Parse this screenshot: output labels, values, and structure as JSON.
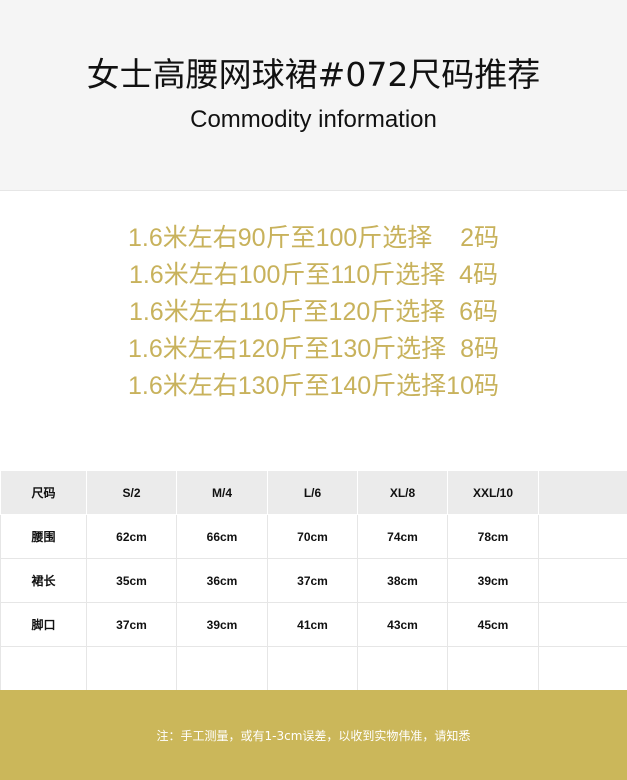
{
  "header": {
    "title": "女士高腰网球裙#072尺码推荐",
    "subtitle": "Commodity information"
  },
  "recommendations": [
    "1.6米左右90斤至100斤选择    2码",
    "1.6米左右100斤至110斤选择  4码",
    "1.6米左右110斤至120斤选择  6码",
    "1.6米左右120斤至130斤选择  8码",
    "1.6米左右130斤至140斤选择10码"
  ],
  "size_table": {
    "header": [
      "尺码",
      "S/2",
      "M/4",
      "L/6",
      "XL/8",
      "XXL/10",
      ""
    ],
    "rows": [
      [
        "腰围",
        "62cm",
        "66cm",
        "70cm",
        "74cm",
        "78cm",
        ""
      ],
      [
        "裙长",
        "35cm",
        "36cm",
        "37cm",
        "38cm",
        "39cm",
        ""
      ],
      [
        "脚口",
        "37cm",
        "39cm",
        "41cm",
        "43cm",
        "45cm",
        ""
      ],
      [
        "",
        "",
        "",
        "",
        "",
        "",
        ""
      ]
    ]
  },
  "footer": {
    "note": "注：手工测量，或有1-3cm误差，以收到实物伟准，请知悉"
  },
  "colors": {
    "accent_gold": "#cbb75a",
    "recommendation_text": "#c8b25c",
    "header_bg": "#f5f5f5"
  }
}
